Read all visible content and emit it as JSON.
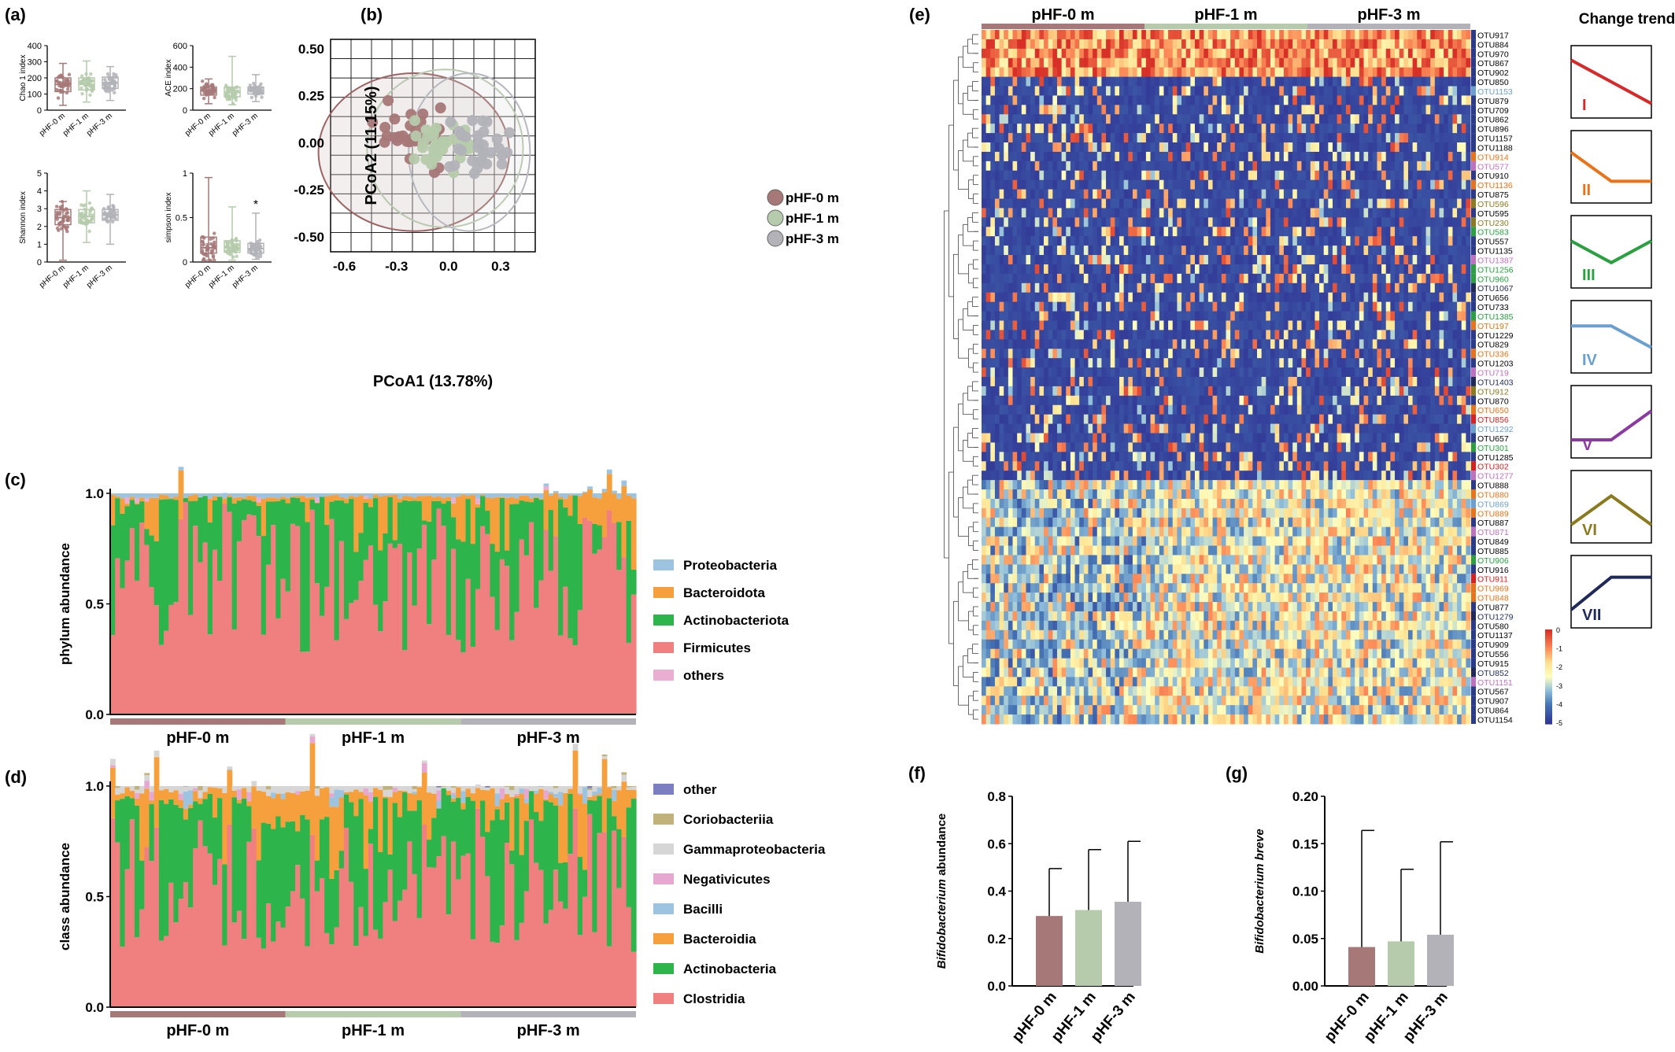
{
  "colors": {
    "g0": "#a67878",
    "g1": "#b5cbab",
    "g2": "#b2b2b8",
    "firm": "#f08080",
    "actino": "#2db54b",
    "bact": "#f5a03c",
    "proteo": "#9cc3e0",
    "others": "#e9aed2",
    "other_class": "#7b7fc2",
    "corio": "#c0b27a",
    "gamma": "#d6d6d6",
    "negativ": "#e6a8d0",
    "bacilli": "#9cc3e0"
  },
  "panel_letters": [
    "(a)",
    "(b)",
    "(c)",
    "(d)",
    "(e)",
    "(f)",
    "(g)"
  ],
  "groups": [
    "pHF-0 m",
    "pHF-1 m",
    "pHF-3 m"
  ],
  "chart_data": [
    {
      "panel": "(a)",
      "type": "box",
      "ylabel": "Chao 1 index",
      "yticks": [
        0,
        100,
        200,
        300,
        400
      ],
      "ylim": [
        0,
        400
      ],
      "categories": [
        "pHF-0 m",
        "pHF-1 m",
        "pHF-3 m"
      ],
      "boxes": [
        {
          "min": 30,
          "q1": 115,
          "median": 160,
          "q3": 200,
          "max": 290
        },
        {
          "min": 50,
          "q1": 125,
          "median": 160,
          "q3": 200,
          "max": 305
        },
        {
          "min": 60,
          "q1": 135,
          "median": 170,
          "q3": 205,
          "max": 270
        }
      ]
    },
    {
      "panel": "(a)",
      "type": "box",
      "ylabel": "ACE index",
      "yticks": [
        0,
        200,
        400,
        600
      ],
      "ylim": [
        0,
        600
      ],
      "categories": [
        "pHF-0 m",
        "pHF-1 m",
        "pHF-3 m"
      ],
      "boxes": [
        {
          "min": 60,
          "q1": 140,
          "median": 180,
          "q3": 215,
          "max": 290
        },
        {
          "min": 50,
          "q1": 125,
          "median": 165,
          "q3": 215,
          "max": 500
        },
        {
          "min": 80,
          "q1": 150,
          "median": 185,
          "q3": 215,
          "max": 330
        }
      ]
    },
    {
      "panel": "(a)",
      "type": "box",
      "ylabel": "Shannon index",
      "yticks": [
        0,
        1,
        2,
        3,
        4,
        5
      ],
      "ylim": [
        0,
        5
      ],
      "categories": [
        "pHF-0 m",
        "pHF-1 m",
        "pHF-3 m"
      ],
      "boxes": [
        {
          "min": 0.1,
          "q1": 2.1,
          "median": 2.5,
          "q3": 2.95,
          "max": 3.4
        },
        {
          "min": 1.1,
          "q1": 2.2,
          "median": 2.55,
          "q3": 2.95,
          "max": 4.0
        },
        {
          "min": 1.0,
          "q1": 2.35,
          "median": 2.65,
          "q3": 2.95,
          "max": 3.8
        }
      ]
    },
    {
      "panel": "(a)",
      "type": "box",
      "ylabel": "simpson index",
      "yticks": [
        0.0,
        0.5,
        1.0
      ],
      "ylim": [
        0,
        1.0
      ],
      "categories": [
        "pHF-0 m",
        "pHF-1 m",
        "pHF-3 m"
      ],
      "boxes": [
        {
          "min": 0.02,
          "q1": 0.1,
          "median": 0.16,
          "q3": 0.28,
          "max": 0.95
        },
        {
          "min": 0.02,
          "q1": 0.11,
          "median": 0.16,
          "q3": 0.24,
          "max": 0.62
        },
        {
          "min": 0.03,
          "q1": 0.1,
          "median": 0.15,
          "q3": 0.21,
          "max": 0.55
        }
      ],
      "annotation": "*"
    },
    {
      "panel": "(b)",
      "type": "scatter",
      "xlabel": "PCoA1 (13.78%)",
      "ylabel": "PCoA2 (11.15%)",
      "xticks": [
        "-0.6",
        "-0.3",
        "0.0",
        "0.3"
      ],
      "yticks": [
        "0.50",
        "0.25",
        "0.00",
        "-0.25",
        "-0.50"
      ],
      "xlim": [
        -0.68,
        0.5
      ],
      "ylim": [
        -0.58,
        0.55
      ],
      "series": [
        {
          "name": "pHF-0 m",
          "center": [
            -0.2,
            0.03
          ]
        },
        {
          "name": "pHF-1 m",
          "center": [
            -0.05,
            -0.02
          ]
        },
        {
          "name": "pHF-3 m",
          "center": [
            0.15,
            -0.05
          ]
        }
      ],
      "ellipses": [
        {
          "center": [
            -0.2,
            -0.05
          ],
          "rx": 0.55,
          "ry": 0.42
        },
        {
          "center": [
            -0.02,
            -0.03
          ],
          "rx": 0.45,
          "ry": 0.42
        },
        {
          "center": [
            0.12,
            -0.05
          ],
          "rx": 0.35,
          "ry": 0.42
        }
      ]
    },
    {
      "panel": "(c)",
      "type": "stacked_bar",
      "ylabel": "phylum abundance",
      "yticks": [
        "0.0",
        "0.5",
        "1.0"
      ],
      "legend": [
        "Proteobacteria",
        "Bacteroidota",
        "Actinobacteriota",
        "Firmicutes",
        "others"
      ]
    },
    {
      "panel": "(d)",
      "type": "stacked_bar",
      "ylabel": "class abundance",
      "yticks": [
        "0.0",
        "0.5",
        "1.0"
      ],
      "legend": [
        "other",
        "Coriobacteriia",
        "Gammaproteobacteria",
        "Negativicutes",
        "Bacilli",
        "Bacteroidia",
        "Actinobacteria",
        "Clostridia"
      ]
    },
    {
      "panel": "(e)",
      "type": "heatmap",
      "title": "Change trend",
      "colorbar_ticks": [
        "0",
        "-1",
        "-2",
        "-3",
        "-4",
        "-5"
      ],
      "trends": [
        "I",
        "II",
        "III",
        "IV",
        "V",
        "VI",
        "VII"
      ],
      "rows": [
        {
          "label": "OTU917",
          "c": "#000000"
        },
        {
          "label": "OTU884",
          "c": "#000000"
        },
        {
          "label": "OTU970",
          "c": "#000000"
        },
        {
          "label": "OTU867",
          "c": "#000000"
        },
        {
          "label": "OTU902",
          "c": "#000000"
        },
        {
          "label": "OTU850",
          "c": "#000000"
        },
        {
          "label": "OTU1153",
          "c": "#6a9fd0"
        },
        {
          "label": "OTU879",
          "c": "#000000"
        },
        {
          "label": "OTU709",
          "c": "#000000"
        },
        {
          "label": "OTU862",
          "c": "#000000"
        },
        {
          "label": "OTU896",
          "c": "#000000"
        },
        {
          "label": "OTU1157",
          "c": "#000000"
        },
        {
          "label": "OTU1188",
          "c": "#000000"
        },
        {
          "label": "OTU914",
          "c": "#e8731a"
        },
        {
          "label": "OTU577",
          "c": "#c070c0"
        },
        {
          "label": "OTU910",
          "c": "#000000"
        },
        {
          "label": "OTU1136",
          "c": "#e8731a"
        },
        {
          "label": "OTU875",
          "c": "#000000"
        },
        {
          "label": "OTU596",
          "c": "#8a7a20"
        },
        {
          "label": "OTU595",
          "c": "#000000"
        },
        {
          "label": "OTU230",
          "c": "#8a7a20"
        },
        {
          "label": "OTU583",
          "c": "#2aa040"
        },
        {
          "label": "OTU557",
          "c": "#000000"
        },
        {
          "label": "OTU1135",
          "c": "#000000"
        },
        {
          "label": "OTU1387",
          "c": "#c070c0"
        },
        {
          "label": "OTU1256",
          "c": "#2aa040"
        },
        {
          "label": "OTU960",
          "c": "#2aa040"
        },
        {
          "label": "OTU1067",
          "c": "#1f2a5a"
        },
        {
          "label": "OTU656",
          "c": "#000000"
        },
        {
          "label": "OTU733",
          "c": "#000000"
        },
        {
          "label": "OTU1385",
          "c": "#2aa040"
        },
        {
          "label": "OTU197",
          "c": "#e8731a"
        },
        {
          "label": "OTU1229",
          "c": "#000000"
        },
        {
          "label": "OTU829",
          "c": "#000000"
        },
        {
          "label": "OTU336",
          "c": "#e8731a"
        },
        {
          "label": "OTU1203",
          "c": "#000000"
        },
        {
          "label": "OTU719",
          "c": "#c070c0"
        },
        {
          "label": "OTU1403",
          "c": "#1f2a5a"
        },
        {
          "label": "OTU912",
          "c": "#8a7a20"
        },
        {
          "label": "OTU870",
          "c": "#000000"
        },
        {
          "label": "OTU650",
          "c": "#e8731a"
        },
        {
          "label": "OTU856",
          "c": "#d82020"
        },
        {
          "label": "OTU1292",
          "c": "#6a9fd0"
        },
        {
          "label": "OTU657",
          "c": "#000000"
        },
        {
          "label": "OTU301",
          "c": "#2aa040"
        },
        {
          "label": "OTU1285",
          "c": "#000000"
        },
        {
          "label": "OTU302",
          "c": "#d82020"
        },
        {
          "label": "OTU1277",
          "c": "#c070c0"
        },
        {
          "label": "OTU888",
          "c": "#000000"
        },
        {
          "label": "OTU880",
          "c": "#e8731a"
        },
        {
          "label": "OTU869",
          "c": "#6a9fd0"
        },
        {
          "label": "OTU889",
          "c": "#e8731a"
        },
        {
          "label": "OTU887",
          "c": "#000000"
        },
        {
          "label": "OTU871",
          "c": "#c070c0"
        },
        {
          "label": "OTU849",
          "c": "#000000"
        },
        {
          "label": "OTU885",
          "c": "#000000"
        },
        {
          "label": "OTU906",
          "c": "#2aa040"
        },
        {
          "label": "OTU916",
          "c": "#000000"
        },
        {
          "label": "OTU911",
          "c": "#d82020"
        },
        {
          "label": "OTU969",
          "c": "#e8731a"
        },
        {
          "label": "OTU848",
          "c": "#e8731a"
        },
        {
          "label": "OTU877",
          "c": "#000000"
        },
        {
          "label": "OTU1279",
          "c": "#1f2a5a"
        },
        {
          "label": "OTU580",
          "c": "#000000"
        },
        {
          "label": "OTU1137",
          "c": "#000000"
        },
        {
          "label": "OTU909",
          "c": "#000000"
        },
        {
          "label": "OTU556",
          "c": "#000000"
        },
        {
          "label": "OTU915",
          "c": "#000000"
        },
        {
          "label": "OTU852",
          "c": "#1f2a5a"
        },
        {
          "label": "OTU1151",
          "c": "#c070c0"
        },
        {
          "label": "OTU567",
          "c": "#000000"
        },
        {
          "label": "OTU907",
          "c": "#000000"
        },
        {
          "label": "OTU864",
          "c": "#000000"
        },
        {
          "label": "OTU1154",
          "c": "#000000"
        }
      ]
    },
    {
      "panel": "(f)",
      "type": "bar",
      "ylabel_italic": "Bifidobacterium",
      "ylabel_rest": " abundance",
      "yticks": [
        "0.0",
        "0.2",
        "0.4",
        "0.6",
        "0.8"
      ],
      "ylim": [
        0,
        0.8
      ],
      "categories": [
        "pHF-0 m",
        "pHF-1 m",
        "pHF-3 m"
      ],
      "values": [
        0.295,
        0.32,
        0.355
      ],
      "errors": [
        0.2,
        0.255,
        0.255
      ]
    },
    {
      "panel": "(g)",
      "type": "bar",
      "ylabel_italic": "Bifidobacterium breve",
      "ylabel_rest": "",
      "yticks": [
        "0.00",
        "0.05",
        "0.10",
        "0.15",
        "0.20"
      ],
      "ylim": [
        0,
        0.2
      ],
      "categories": [
        "pHF-0 m",
        "pHF-1 m",
        "pHF-3 m"
      ],
      "values": [
        0.041,
        0.047,
        0.054
      ],
      "errors": [
        0.123,
        0.076,
        0.098
      ]
    }
  ]
}
